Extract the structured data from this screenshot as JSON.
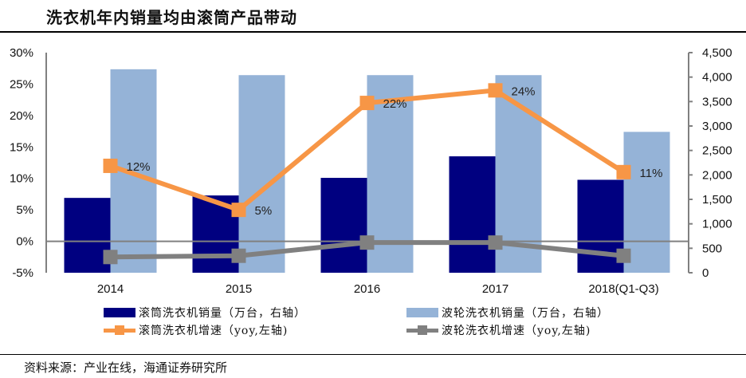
{
  "title": "洗衣机年内销量均由滚筒产品带动",
  "source": "资料来源：产业在线，海通证券研究所",
  "colors": {
    "drum_sales": "#000080",
    "pulsator_sales": "#95B3D7",
    "drum_growth": "#F79646",
    "pulsator_growth": "#808080",
    "axis": "#808080"
  },
  "chart_data": {
    "type": "bar",
    "title": "洗衣机年内销量均由滚筒产品带动",
    "categories": [
      "2014",
      "2015",
      "2016",
      "2017",
      "2018(Q1-Q3)"
    ],
    "left_axis": {
      "ylim": [
        -0.05,
        0.3
      ],
      "ticks": [
        "30%",
        "25%",
        "20%",
        "15%",
        "10%",
        "5%",
        "0%",
        "-5%"
      ],
      "tick_values": [
        0.3,
        0.25,
        0.2,
        0.15,
        0.1,
        0.05,
        0.0,
        -0.05
      ]
    },
    "right_axis": {
      "ylim": [
        0,
        4500
      ],
      "ticks": [
        "4,500",
        "4,000",
        "3,500",
        "3,000",
        "2,500",
        "2,000",
        "1,500",
        "1,000",
        "500",
        "0"
      ],
      "tick_values": [
        4500,
        4000,
        3500,
        3000,
        2500,
        2000,
        1500,
        1000,
        500,
        0
      ]
    },
    "series": [
      {
        "name": "滚筒洗衣机销量（万台，右轴）",
        "type": "bar",
        "axis": "right",
        "color": "#000080",
        "values": [
          1530,
          1580,
          1940,
          2380,
          1900
        ]
      },
      {
        "name": "波轮洗衣机销量（万台，右轴）",
        "type": "bar",
        "axis": "right",
        "color": "#95B3D7",
        "values": [
          4160,
          4040,
          4040,
          4040,
          2880
        ]
      },
      {
        "name": "滚筒洗衣机增速（yoy,左轴)",
        "type": "line",
        "axis": "left",
        "color": "#F79646",
        "values": [
          0.12,
          0.05,
          0.22,
          0.24,
          0.11
        ],
        "labels": [
          "12%",
          "5%",
          "22%",
          "24%",
          "11%"
        ]
      },
      {
        "name": "波轮洗衣机增速（yoy,左轴)",
        "type": "line",
        "axis": "left",
        "color": "#808080",
        "values": [
          -0.025,
          -0.023,
          -0.002,
          -0.002,
          -0.023
        ]
      }
    ],
    "legend_position": "bottom",
    "grid": false
  },
  "legend": [
    {
      "label": "滚筒洗衣机销量（万台，右轴）",
      "kind": "bar",
      "color": "#000080"
    },
    {
      "label": "波轮洗衣机销量（万台，右轴）",
      "kind": "bar",
      "color": "#95B3D7"
    },
    {
      "label": "滚筒洗衣机增速（yoy,左轴)",
      "kind": "line",
      "color": "#F79646"
    },
    {
      "label": "波轮洗衣机增速（yoy,左轴)",
      "kind": "line",
      "color": "#808080"
    }
  ]
}
